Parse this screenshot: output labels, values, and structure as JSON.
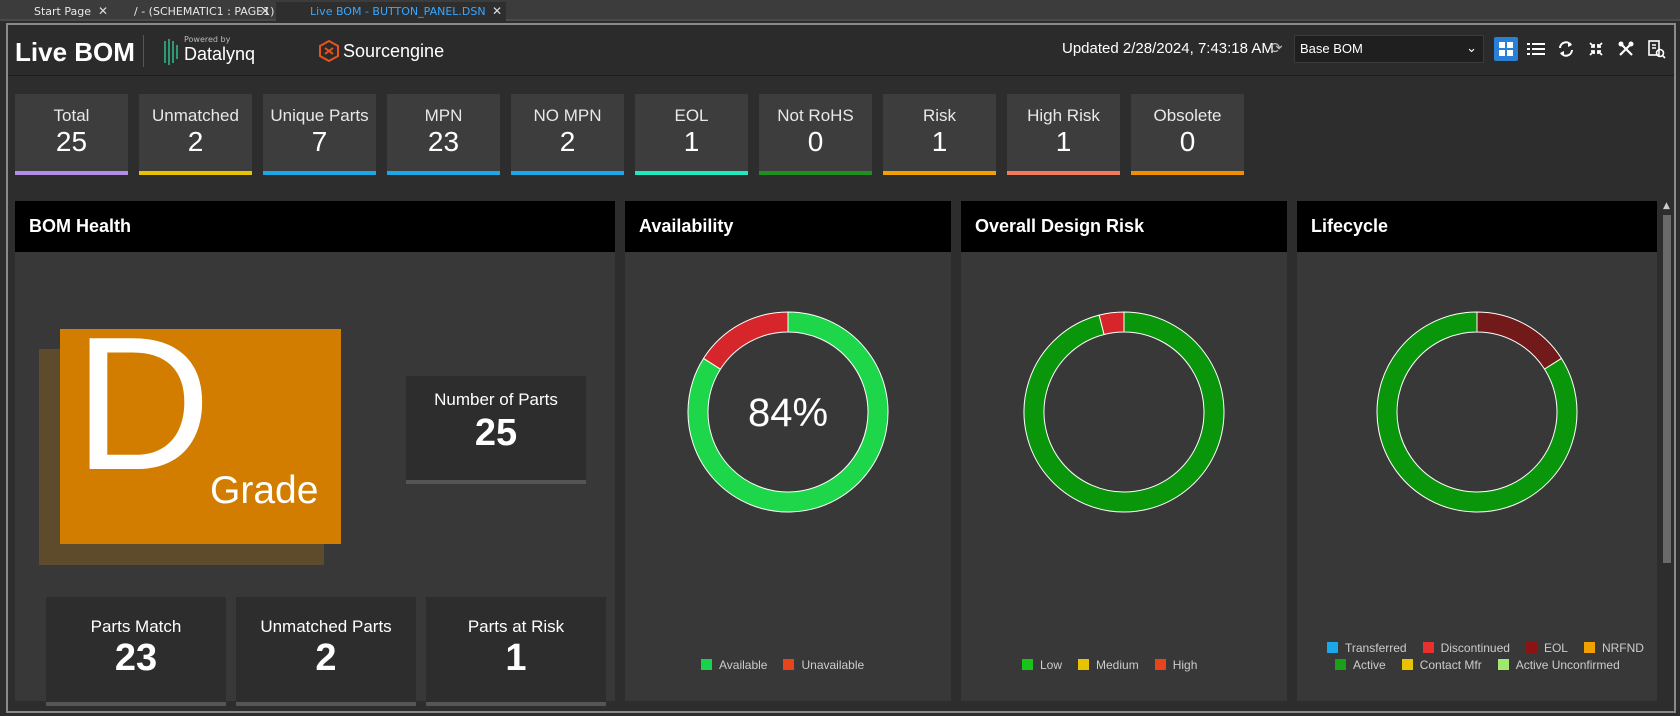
{
  "tabs": [
    {
      "label": "Start Page",
      "active": false
    },
    {
      "label": "/ - (SCHEMATIC1 : PAGE1)",
      "active": false
    },
    {
      "label": "Live BOM - BUTTON_PANEL.DSN",
      "active": true
    }
  ],
  "header": {
    "title": "Live BOM",
    "powered_by": "Powered by",
    "datalynq": "Datalynq",
    "sourcengine": "Sourcengine",
    "updated": "Updated 2/28/2024, 7:43:18 AM",
    "bom_select": "Base BOM",
    "toolbar_icons": [
      "grid-view-icon",
      "list-view-icon",
      "refresh-icon",
      "collapse-icon",
      "close-tools-icon",
      "export-icon"
    ]
  },
  "stats": [
    {
      "label": "Total",
      "value": "25",
      "color": "#b48ee6"
    },
    {
      "label": "Unmatched",
      "value": "2",
      "color": "#e8c400"
    },
    {
      "label": "Unique Parts",
      "value": "7",
      "color": "#1ba8e8"
    },
    {
      "label": "MPN",
      "value": "23",
      "color": "#1ba8e8"
    },
    {
      "label": "NO MPN",
      "value": "2",
      "color": "#1ba8e8"
    },
    {
      "label": "EOL",
      "value": "1",
      "color": "#1de9c0"
    },
    {
      "label": "Not RoHS",
      "value": "0",
      "color": "#1f8f1f"
    },
    {
      "label": "Risk",
      "value": "1",
      "color": "#f0a000"
    },
    {
      "label": "High Risk",
      "value": "1",
      "color": "#f07a5a"
    },
    {
      "label": "Obsolete",
      "value": "0",
      "color": "#f09000"
    }
  ],
  "bom_health": {
    "title": "BOM Health",
    "grade_letter": "D",
    "grade_word": "Grade",
    "number_of_parts_label": "Number of Parts",
    "number_of_parts": "25",
    "parts_match_label": "Parts Match",
    "parts_match": "23",
    "unmatched_parts_label": "Unmatched Parts",
    "unmatched_parts": "2",
    "parts_at_risk_label": "Parts at Risk",
    "parts_at_risk": "1"
  },
  "availability": {
    "title": "Availability",
    "center_text": "84%",
    "legend": [
      {
        "label": "Available",
        "color": "#19d14a"
      },
      {
        "label": "Unavailable",
        "color": "#e8431a"
      }
    ]
  },
  "design_risk": {
    "title": "Overall Design Risk",
    "legend": [
      {
        "label": "Low",
        "color": "#19c419"
      },
      {
        "label": "Medium",
        "color": "#e8c400"
      },
      {
        "label": "High",
        "color": "#e8431a"
      }
    ]
  },
  "lifecycle": {
    "title": "Lifecycle",
    "legend_row1": [
      {
        "label": "Transferred",
        "color": "#1ba8e8"
      },
      {
        "label": "Discontinued",
        "color": "#e83030"
      },
      {
        "label": "EOL",
        "color": "#8a1414"
      },
      {
        "label": "NRFND",
        "color": "#f0a000"
      }
    ],
    "legend_row2": [
      {
        "label": "Active",
        "color": "#19a019"
      },
      {
        "label": "Contact Mfr",
        "color": "#e8c400"
      },
      {
        "label": "Active Unconfirmed",
        "color": "#a0e870"
      }
    ]
  },
  "chart_data": [
    {
      "type": "pie",
      "title": "Availability",
      "categories": [
        "Available",
        "Unavailable"
      ],
      "values": [
        84,
        16
      ],
      "colors": [
        "#1ed64a",
        "#d6262b"
      ],
      "center_label": "84%"
    },
    {
      "type": "pie",
      "title": "Overall Design Risk",
      "categories": [
        "Low",
        "Medium",
        "High"
      ],
      "values": [
        96,
        0,
        4
      ],
      "colors": [
        "#0a960a",
        "#e8c400",
        "#d6262b"
      ]
    },
    {
      "type": "pie",
      "title": "Lifecycle",
      "categories": [
        "Transferred",
        "Discontinued",
        "EOL",
        "NRFND",
        "Active",
        "Contact Mfr",
        "Active Unconfirmed"
      ],
      "values": [
        0,
        0,
        16,
        0,
        84,
        0,
        0
      ],
      "colors": [
        "#1ba8e8",
        "#e83030",
        "#721a1a",
        "#f0a000",
        "#0a960a",
        "#e8c400",
        "#a0e870"
      ]
    }
  ]
}
